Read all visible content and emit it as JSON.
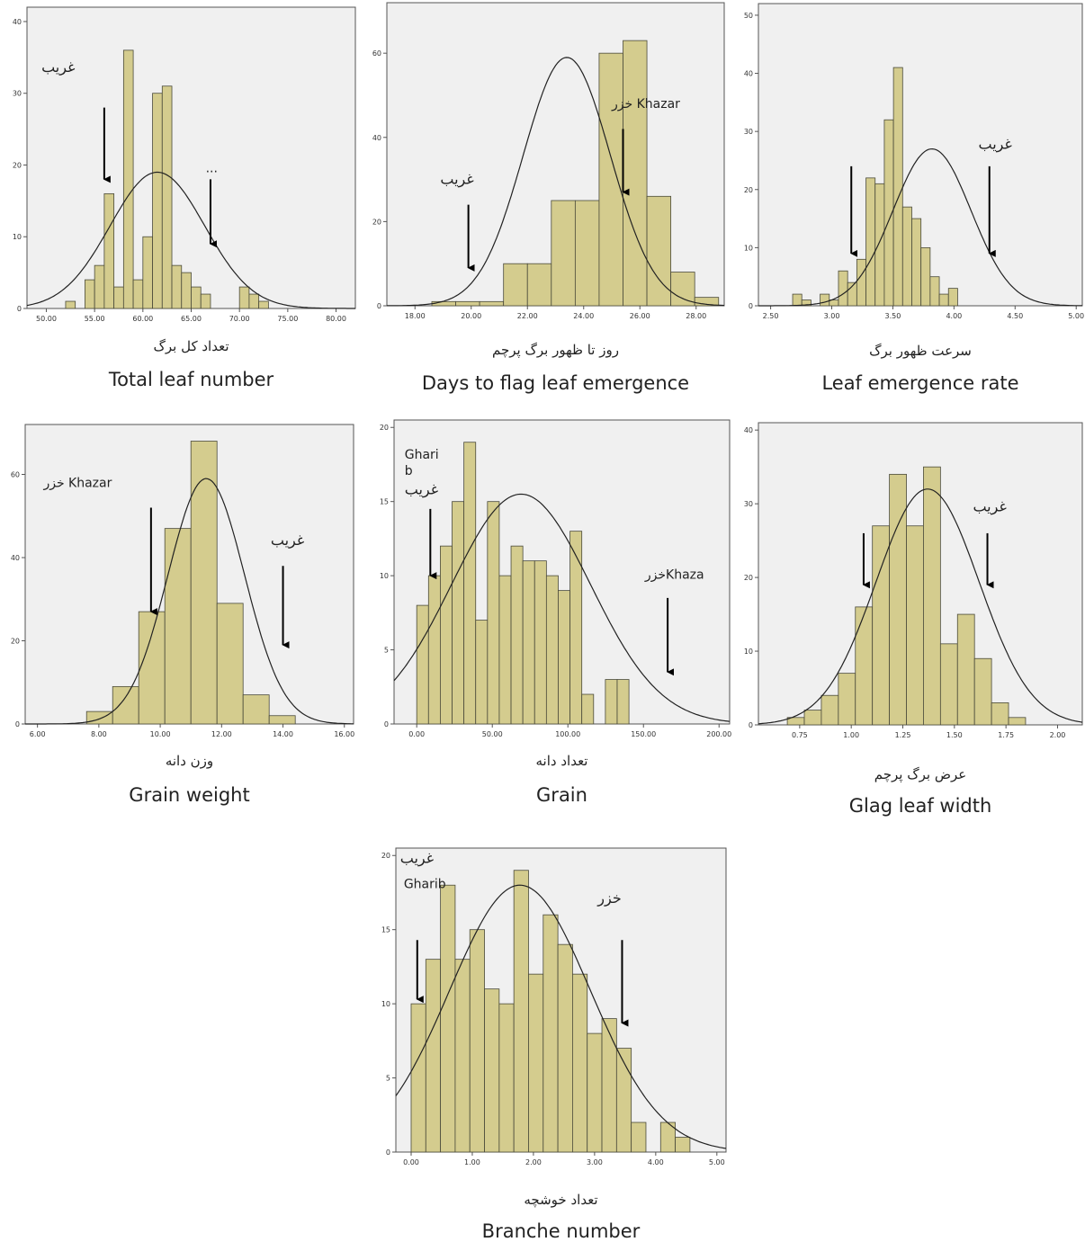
{
  "chart_data": [
    {
      "type": "bar",
      "id": "total-leaf",
      "xlabel_fa": "تعداد کل برگ",
      "xlabel": "Total leaf number",
      "xlim": [
        48,
        82
      ],
      "ylim": [
        0,
        42
      ],
      "xticks": [
        {
          "v": 50,
          "t": "50.00"
        },
        {
          "v": 55,
          "t": "55.00"
        },
        {
          "v": 60,
          "t": "60.00"
        },
        {
          "v": 65,
          "t": "65.00"
        },
        {
          "v": 70,
          "t": "70.00"
        },
        {
          "v": 75,
          "t": "75.00"
        },
        {
          "v": 80,
          "t": "80.00"
        }
      ],
      "yticks": [
        {
          "v": 0,
          "t": "0"
        },
        {
          "v": 10,
          "t": "10"
        },
        {
          "v": 20,
          "t": "20"
        },
        {
          "v": 30,
          "t": "30"
        },
        {
          "v": 40,
          "t": "40"
        }
      ],
      "bin_start": 52,
      "bin_width": 1,
      "values": [
        1,
        0,
        4,
        6,
        16,
        3,
        36,
        4,
        10,
        30,
        31,
        6,
        5,
        3,
        2,
        0,
        0,
        0,
        3,
        2,
        1
      ],
      "curve": {
        "mean": 61.5,
        "sd": 4.9,
        "peak": 19
      },
      "annotations": [
        {
          "text": "غریب",
          "fa": true,
          "x": 49.5,
          "y": 33,
          "arrow": [
            56,
            28,
            56,
            18
          ]
        },
        {
          "text": "...",
          "fa": false,
          "x": 66.5,
          "y": 19,
          "arrow": [
            67,
            18,
            67,
            9
          ]
        }
      ]
    },
    {
      "type": "bar",
      "id": "days-flag",
      "xlabel_fa": "روز تا ظهور برگ پرچم",
      "xlabel": "Days to flag leaf emergence",
      "xlim": [
        17,
        29
      ],
      "ylim": [
        0,
        72
      ],
      "xticks": [
        {
          "v": 18,
          "t": "18.00"
        },
        {
          "v": 20,
          "t": "20.00"
        },
        {
          "v": 22,
          "t": "22.00"
        },
        {
          "v": 24,
          "t": "24.00"
        },
        {
          "v": 26,
          "t": "26.00"
        },
        {
          "v": 28,
          "t": "28.00"
        }
      ],
      "yticks": [
        {
          "v": 0,
          "t": "0"
        },
        {
          "v": 20,
          "t": "20"
        },
        {
          "v": 40,
          "t": "40"
        },
        {
          "v": 60,
          "t": "60"
        }
      ],
      "bin_start": 18.6,
      "bin_width": 0.85,
      "values": [
        1,
        1,
        1,
        10,
        10,
        25,
        25,
        60,
        63,
        26,
        8,
        2
      ],
      "curve": {
        "mean": 23.4,
        "sd": 1.55,
        "peak": 59
      },
      "annotations": [
        {
          "text": "غریب",
          "fa": true,
          "x": 18.9,
          "y": 29,
          "arrow": [
            19.9,
            24,
            19.9,
            9
          ]
        },
        {
          "text": "خزر Khazar",
          "fa": false,
          "x": 25.0,
          "y": 47,
          "arrow": [
            25.4,
            42,
            25.4,
            27
          ]
        }
      ]
    },
    {
      "type": "bar",
      "id": "leaf-rate",
      "xlabel_fa": "سرعت ظهور برگ",
      "xlabel": "Leaf emergence rate",
      "xlim": [
        2.4,
        5.05
      ],
      "ylim": [
        0,
        52
      ],
      "xticks": [
        {
          "v": 2.5,
          "t": "2.50"
        },
        {
          "v": 3.0,
          "t": "3.00"
        },
        {
          "v": 3.5,
          "t": "3.50"
        },
        {
          "v": 4.0,
          "t": "4.00"
        },
        {
          "v": 4.5,
          "t": "4.50"
        },
        {
          "v": 5.0,
          "t": "5.00"
        }
      ],
      "yticks": [
        {
          "v": 0,
          "t": "0"
        },
        {
          "v": 10,
          "t": "10"
        },
        {
          "v": 20,
          "t": "20"
        },
        {
          "v": 30,
          "t": "30"
        },
        {
          "v": 40,
          "t": "40"
        },
        {
          "v": 50,
          "t": "50"
        }
      ],
      "bin_start": 2.68,
      "bin_width": 0.075,
      "values": [
        2,
        1,
        0,
        2,
        1,
        6,
        4,
        8,
        22,
        21,
        32,
        41,
        17,
        15,
        10,
        5,
        2,
        3
      ],
      "curve": {
        "mean": 3.82,
        "sd": 0.32,
        "peak": 27
      },
      "annotations": [
        {
          "text": "غریب",
          "fa": true,
          "x": 4.2,
          "y": 27,
          "arrow": [
            4.29,
            24,
            4.29,
            9
          ]
        },
        {
          "text": "",
          "fa": false,
          "x": 3.1,
          "y": 25,
          "arrow": [
            3.16,
            24,
            3.16,
            9
          ]
        }
      ]
    },
    {
      "type": "bar",
      "id": "grain-weight",
      "xlabel_fa": "وزن دانه",
      "xlabel": "Grain weight",
      "xlim": [
        5.6,
        16.3
      ],
      "ylim": [
        0,
        72
      ],
      "xticks": [
        {
          "v": 6,
          "t": "6.00"
        },
        {
          "v": 8,
          "t": "8.00"
        },
        {
          "v": 10,
          "t": "10.00"
        },
        {
          "v": 12,
          "t": "12.00"
        },
        {
          "v": 14,
          "t": "14.00"
        },
        {
          "v": 16,
          "t": "16.00"
        }
      ],
      "yticks": [
        {
          "v": 0,
          "t": "0"
        },
        {
          "v": 20,
          "t": "20"
        },
        {
          "v": 40,
          "t": "40"
        },
        {
          "v": 60,
          "t": "60"
        }
      ],
      "bin_start": 7.6,
      "bin_width": 0.85,
      "values": [
        3,
        9,
        27,
        47,
        68,
        29,
        7,
        2
      ],
      "curve": {
        "mean": 11.5,
        "sd": 1.25,
        "peak": 59
      },
      "annotations": [
        {
          "text": "خزر Khazar",
          "fa": false,
          "x": 6.2,
          "y": 57,
          "arrow": [
            9.7,
            52,
            9.7,
            27
          ]
        },
        {
          "text": "غریب",
          "fa": true,
          "x": 13.6,
          "y": 43,
          "arrow": [
            14.0,
            38,
            14.0,
            19
          ]
        }
      ]
    },
    {
      "type": "bar",
      "id": "grain",
      "xlabel_fa": "تعداد دانه",
      "xlabel": "Grain",
      "xlim": [
        -15,
        207
      ],
      "ylim": [
        0,
        20.5
      ],
      "xticks": [
        {
          "v": 0,
          "t": "0.00"
        },
        {
          "v": 50,
          "t": "50.00"
        },
        {
          "v": 100,
          "t": "100.00"
        },
        {
          "v": 150,
          "t": "150.00"
        },
        {
          "v": 200,
          "t": "200.00"
        }
      ],
      "yticks": [
        {
          "v": 0,
          "t": "0"
        },
        {
          "v": 5,
          "t": "5"
        },
        {
          "v": 10,
          "t": "10"
        },
        {
          "v": 15,
          "t": "15"
        },
        {
          "v": 20,
          "t": "20"
        }
      ],
      "bin_start": 0,
      "bin_width": 7.8,
      "values": [
        8,
        10,
        12,
        15,
        19,
        7,
        15,
        10,
        12,
        11,
        11,
        10,
        9,
        13,
        2,
        0,
        3,
        3
      ],
      "curve": {
        "mean": 69,
        "sd": 46,
        "peak": 15.5
      },
      "annotations": [
        {
          "text": "Ghari",
          "fa": false,
          "x": -8,
          "y": 17.9,
          "arrow": null
        },
        {
          "text": "b",
          "fa": false,
          "x": -8,
          "y": 16.8,
          "arrow": null
        },
        {
          "text": "غریب",
          "fa": true,
          "x": -8,
          "y": 15.5,
          "arrow": [
            9,
            14.5,
            9,
            10
          ]
        },
        {
          "text": "خزرKhaza",
          "fa": false,
          "x": 151,
          "y": 9.8,
          "arrow": [
            166,
            8.5,
            166,
            3.5
          ]
        }
      ]
    },
    {
      "type": "bar",
      "id": "flag-width",
      "xlabel_fa": "عرض برگ پرچم",
      "xlabel": "Glag leaf width",
      "xlim": [
        0.55,
        2.12
      ],
      "ylim": [
        0,
        41
      ],
      "xticks": [
        {
          "v": 0.75,
          "t": "0.75"
        },
        {
          "v": 1.0,
          "t": "1.00"
        },
        {
          "v": 1.25,
          "t": "1.25"
        },
        {
          "v": 1.5,
          "t": "1.50"
        },
        {
          "v": 1.75,
          "t": "1.75"
        },
        {
          "v": 2.0,
          "t": "2.00"
        }
      ],
      "yticks": [
        {
          "v": 0,
          "t": "0"
        },
        {
          "v": 10,
          "t": "10"
        },
        {
          "v": 20,
          "t": "20"
        },
        {
          "v": 30,
          "t": "30"
        },
        {
          "v": 40,
          "t": "40"
        }
      ],
      "bin_start": 0.69,
      "bin_width": 0.0825,
      "values": [
        1,
        2,
        4,
        7,
        16,
        27,
        34,
        27,
        35,
        11,
        15,
        9,
        3,
        1
      ],
      "curve": {
        "mean": 1.37,
        "sd": 0.25,
        "peak": 32
      },
      "annotations": [
        {
          "text": "غریب",
          "fa": true,
          "x": 1.59,
          "y": 29,
          "arrow": [
            1.66,
            26,
            1.66,
            19
          ]
        },
        {
          "text": "",
          "fa": false,
          "x": 1.0,
          "y": 27,
          "arrow": [
            1.06,
            26,
            1.06,
            19
          ]
        }
      ]
    },
    {
      "type": "bar",
      "id": "branch",
      "xlabel_fa": "تعداد خوشچه",
      "xlabel": "Branche number",
      "xlim": [
        -0.25,
        5.15
      ],
      "ylim": [
        0,
        20.5
      ],
      "xticks": [
        {
          "v": 0,
          "t": "0.00"
        },
        {
          "v": 1,
          "t": "1.00"
        },
        {
          "v": 2,
          "t": "2.00"
        },
        {
          "v": 3,
          "t": "3.00"
        },
        {
          "v": 4,
          "t": "4.00"
        },
        {
          "v": 5,
          "t": "5.00"
        }
      ],
      "yticks": [
        {
          "v": 0,
          "t": "0"
        },
        {
          "v": 5,
          "t": "5"
        },
        {
          "v": 10,
          "t": "10"
        },
        {
          "v": 15,
          "t": "15"
        },
        {
          "v": 20,
          "t": "20"
        }
      ],
      "bin_start": 0,
      "bin_width": 0.24,
      "values": [
        10,
        13,
        18,
        13,
        15,
        11,
        10,
        19,
        12,
        16,
        14,
        12,
        8,
        9,
        7,
        2,
        0,
        2,
        1
      ],
      "curve": {
        "mean": 1.78,
        "sd": 1.15,
        "peak": 18
      },
      "annotations": [
        {
          "text": "غریب",
          "fa": true,
          "x": -0.18,
          "y": 19.5,
          "arrow": null
        },
        {
          "text": "Gharib",
          "fa": false,
          "x": -0.12,
          "y": 17.8,
          "arrow": [
            0.1,
            14.3,
            0.1,
            10.3
          ]
        },
        {
          "text": "خزر",
          "fa": true,
          "x": 3.05,
          "y": 16.8,
          "arrow": [
            3.45,
            14.3,
            3.45,
            8.7
          ]
        }
      ]
    }
  ]
}
